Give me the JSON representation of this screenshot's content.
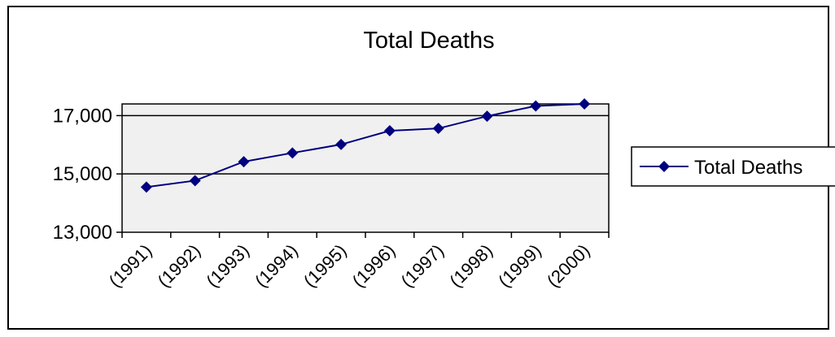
{
  "chart_data": {
    "type": "line",
    "title": "Total Deaths",
    "xlabel": "",
    "ylabel": "",
    "categories": [
      "(1991)",
      "(1992)",
      "(1993)",
      "(1994)",
      "(1995)",
      "(1996)",
      "(1997)",
      "(1998)",
      "(1999)",
      "(2000)"
    ],
    "series": [
      {
        "name": "Total Deaths",
        "values": [
          14550,
          14770,
          15420,
          15720,
          16010,
          16480,
          16560,
          16980,
          17330,
          17400
        ],
        "color": "#000080",
        "marker": "diamond"
      }
    ],
    "y_ticks": [
      "13,000",
      "15,000",
      "17,000"
    ],
    "y_tick_values": [
      13000,
      15000,
      17000
    ],
    "ylim": [
      13000,
      17400
    ],
    "grid": true,
    "gridlines": "horizontal",
    "legend_position": "right",
    "plot_background": "#f0f0f0"
  }
}
